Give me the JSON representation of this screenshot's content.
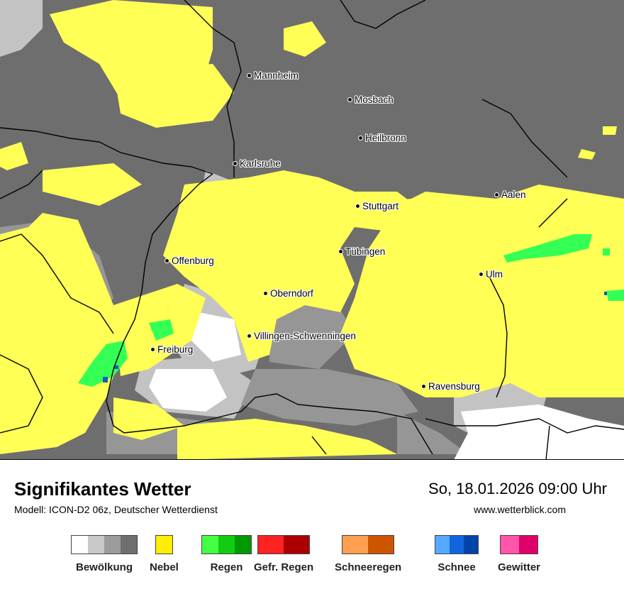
{
  "title": "Signifikantes Wetter",
  "subtitle": "Modell: ICON-D2 06z, Deutscher Wetterdienst",
  "datetime": "So, 18.01.2026 09:00 Uhr",
  "website": "www.wetterblick.com",
  "map": {
    "colors": {
      "dark_cloud": "#6e6e6e",
      "medium_cloud": "#969696",
      "light_cloud": "#c3c3c3",
      "clear": "#ffffff",
      "fog": "#ffff55",
      "rain_light": "#33ff55",
      "rain_medium": "#11cc33",
      "snow": "#0a5bbf",
      "border": "#000000"
    },
    "cities": [
      {
        "name": "Mannheim"
      },
      {
        "name": "Mosbach"
      },
      {
        "name": "Heilbronn"
      },
      {
        "name": "Karlsruhe"
      },
      {
        "name": "Aalen"
      },
      {
        "name": "Stuttgart"
      },
      {
        "name": "Tübingen"
      },
      {
        "name": "Offenburg"
      },
      {
        "name": "Ulm"
      },
      {
        "name": "Oberndorf"
      },
      {
        "name": "Villingen-Schwenningen"
      },
      {
        "name": "Freiburg"
      },
      {
        "name": "Ravensburg"
      }
    ]
  },
  "legend": [
    {
      "label": "Bewölkung",
      "colors": [
        "#ffffff",
        "#c8c8c8",
        "#9b9b9b",
        "#6e6e6e"
      ]
    },
    {
      "label": "Nebel",
      "colors": [
        "#ffee00"
      ]
    },
    {
      "label": "Regen",
      "colors": [
        "#44ff44",
        "#11cc11",
        "#009900"
      ]
    },
    {
      "label": "Gefr. Regen",
      "colors": [
        "#ff2222",
        "#aa0000"
      ]
    },
    {
      "label": "Schneeregen",
      "colors": [
        "#ffa050",
        "#cc5500"
      ]
    },
    {
      "label": "Schnee",
      "colors": [
        "#55aaff",
        "#1166dd",
        "#0044aa"
      ]
    },
    {
      "label": "Gewitter",
      "colors": [
        "#ff55aa",
        "#e0006a"
      ]
    }
  ]
}
